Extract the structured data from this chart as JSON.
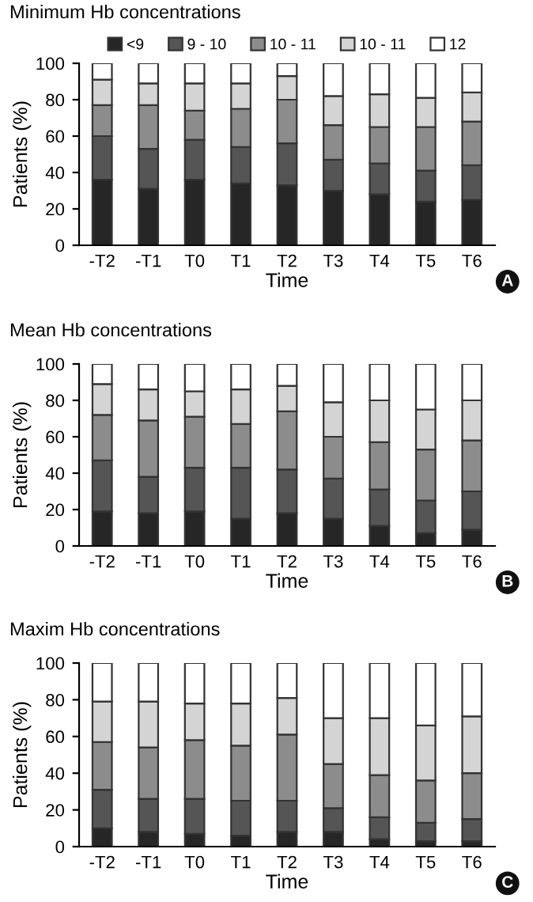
{
  "chart_data": [
    {
      "type": "bar",
      "stacked": true,
      "title": "Minimum Hb concentrations",
      "xlabel": "Time",
      "ylabel": "Patients (%)",
      "categories": [
        "-T2",
        "-T1",
        "T0",
        "T1",
        "T2",
        "T3",
        "T4",
        "T5",
        "T6"
      ],
      "ylim": [
        0,
        100
      ],
      "yticks": [
        0,
        20,
        40,
        60,
        80,
        100
      ],
      "legend": "top",
      "grid": false,
      "annotations": [
        "A"
      ],
      "series": [
        {
          "name": "<9",
          "color": "#262626",
          "values": [
            36,
            31,
            36,
            34,
            33,
            30,
            28,
            24,
            25
          ]
        },
        {
          "name": "9 - 10",
          "color": "#555555",
          "values": [
            24,
            22,
            22,
            20,
            23,
            17,
            17,
            17,
            19
          ]
        },
        {
          "name": "10 - 11",
          "color": "#8c8c8c",
          "values": [
            17,
            24,
            16,
            21,
            24,
            19,
            20,
            24,
            24
          ]
        },
        {
          "name": "10 - 11",
          "color": "#d4d4d4",
          "values": [
            14,
            12,
            15,
            14,
            13,
            16,
            18,
            16,
            16
          ]
        },
        {
          "name": "12",
          "color": "#ffffff",
          "values": [
            9,
            11,
            11,
            11,
            7,
            18,
            17,
            19,
            16
          ]
        }
      ]
    },
    {
      "type": "bar",
      "stacked": true,
      "title": "Mean Hb concentrations",
      "xlabel": "Time",
      "ylabel": "Patients (%)",
      "categories": [
        "-T2",
        "-T1",
        "T0",
        "T1",
        "T2",
        "T3",
        "T4",
        "T5",
        "T6"
      ],
      "ylim": [
        0,
        100
      ],
      "yticks": [
        0,
        20,
        40,
        60,
        80,
        100
      ],
      "grid": false,
      "annotations": [
        "B"
      ],
      "series": [
        {
          "color": "#262626",
          "values": [
            19,
            18,
            19,
            15,
            18,
            15,
            11,
            7,
            9
          ]
        },
        {
          "color": "#555555",
          "values": [
            28,
            20,
            24,
            28,
            24,
            22,
            20,
            18,
            21
          ]
        },
        {
          "color": "#8c8c8c",
          "values": [
            25,
            31,
            28,
            24,
            32,
            23,
            26,
            28,
            28
          ]
        },
        {
          "color": "#d4d4d4",
          "values": [
            17,
            17,
            14,
            19,
            14,
            19,
            23,
            22,
            22
          ]
        },
        {
          "color": "#ffffff",
          "values": [
            11,
            14,
            15,
            14,
            12,
            21,
            20,
            25,
            20
          ]
        }
      ]
    },
    {
      "type": "bar",
      "stacked": true,
      "title": "Maxim Hb concentrations",
      "xlabel": "Time",
      "ylabel": "Patients (%)",
      "categories": [
        "-T2",
        "-T1",
        "T0",
        "T1",
        "T2",
        "T3",
        "T4",
        "T5",
        "T6"
      ],
      "ylim": [
        0,
        100
      ],
      "yticks": [
        0,
        20,
        40,
        60,
        80,
        100
      ],
      "grid": false,
      "annotations": [
        "C"
      ],
      "series": [
        {
          "color": "#262626",
          "values": [
            10,
            8,
            7,
            6,
            8,
            8,
            4,
            3,
            3
          ]
        },
        {
          "color": "#555555",
          "values": [
            21,
            18,
            19,
            19,
            17,
            13,
            12,
            10,
            12
          ]
        },
        {
          "color": "#8c8c8c",
          "values": [
            26,
            28,
            32,
            30,
            36,
            24,
            23,
            23,
            25
          ]
        },
        {
          "color": "#d4d4d4",
          "values": [
            22,
            25,
            20,
            23,
            20,
            25,
            31,
            30,
            31
          ]
        },
        {
          "color": "#ffffff",
          "values": [
            21,
            21,
            22,
            22,
            19,
            30,
            30,
            34,
            29
          ]
        }
      ]
    }
  ]
}
